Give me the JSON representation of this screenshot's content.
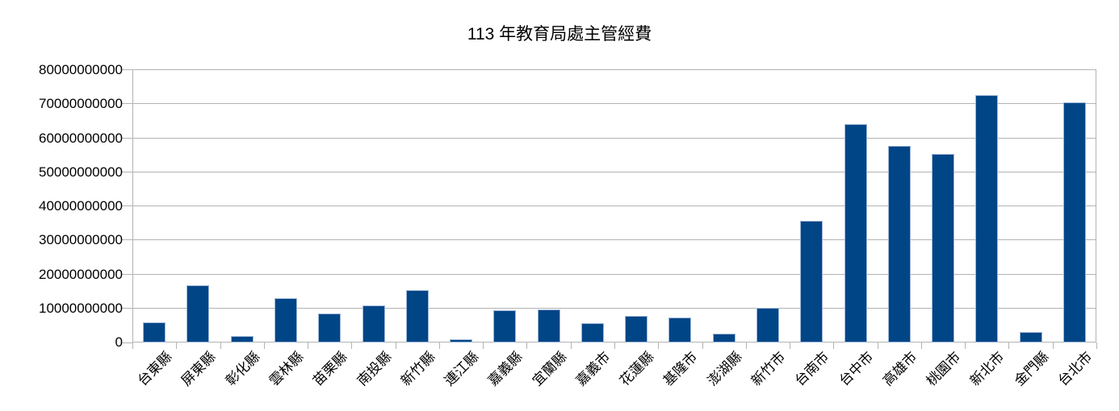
{
  "title": "113 年教育局處主管經費",
  "chart_data": {
    "type": "bar",
    "title": "113 年教育局處主管經費",
    "categories": [
      "台東縣",
      "屏東縣",
      "彰化縣",
      "雲林縣",
      "苗栗縣",
      "南投縣",
      "新竹縣",
      "連江縣",
      "嘉義縣",
      "宜蘭縣",
      "嘉義市",
      "花蓮縣",
      "基隆市",
      "澎湖縣",
      "新竹市",
      "台南市",
      "台中市",
      "高雄市",
      "桃園市",
      "新北市",
      "金門縣",
      "台北市"
    ],
    "values": [
      6000000000,
      16800000000,
      1800000000,
      13100000000,
      8600000000,
      10900000000,
      15300000000,
      900000000,
      9400000000,
      9700000000,
      5700000000,
      7700000000,
      7300000000,
      2700000000,
      10200000000,
      35700000000,
      64100000000,
      57700000000,
      55500000000,
      72600000000,
      3000000000,
      70600000000
    ],
    "xlabel": "",
    "ylabel": "",
    "ylim": [
      0,
      80000000000
    ],
    "ytick_interval": 10000000000,
    "ytick_labels": [
      "0",
      "10000000000",
      "20000000000",
      "30000000000",
      "40000000000",
      "50000000000",
      "60000000000",
      "70000000000",
      "80000000000"
    ],
    "grid": "horizontal",
    "legend": "none",
    "x_label_rotation_deg": 45,
    "colors": {
      "bar_fill": "#004586",
      "bar_border": "#9db6d8",
      "gridline": "#b3b3b3",
      "axis": "#b3b3b3",
      "text": "#000000",
      "background": "#ffffff"
    }
  }
}
